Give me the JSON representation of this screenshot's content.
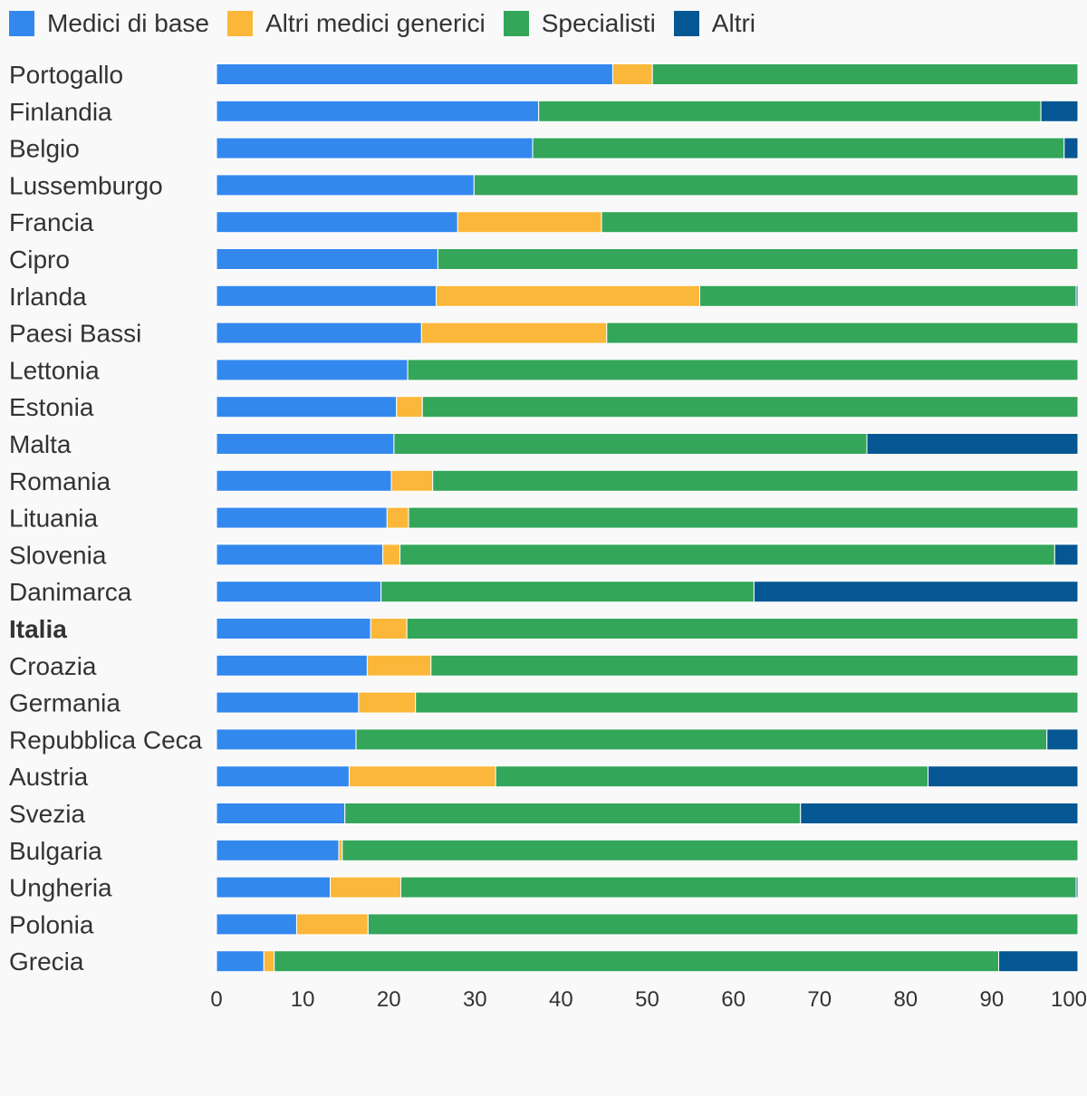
{
  "chart_data": {
    "type": "bar",
    "orientation": "horizontal",
    "stacked": true,
    "legend_position": "top-left",
    "xlim": [
      0,
      100
    ],
    "x_ticks": [
      0,
      10,
      20,
      30,
      40,
      50,
      60,
      70,
      80,
      90,
      100
    ],
    "highlight_category": "Italia",
    "categories": [
      "Portogallo",
      "Finlandia",
      "Belgio",
      "Lussemburgo",
      "Francia",
      "Cipro",
      "Irlanda",
      "Paesi Bassi",
      "Lettonia",
      "Estonia",
      "Malta",
      "Romania",
      "Lituania",
      "Slovenia",
      "Danimarca",
      "Italia",
      "Croazia",
      "Germania",
      "Repubblica Ceca",
      "Austria",
      "Svezia",
      "Bulgaria",
      "Ungheria",
      "Polonia",
      "Grecia"
    ],
    "series": [
      {
        "name": "Medici di base",
        "color": "#3388ee",
        "values": [
          46.0,
          37.4,
          36.7,
          29.9,
          28.0,
          25.7,
          25.5,
          23.8,
          22.2,
          20.9,
          20.6,
          20.3,
          19.8,
          19.3,
          19.1,
          17.9,
          17.5,
          16.5,
          16.2,
          15.4,
          14.9,
          14.2,
          13.2,
          9.3,
          5.5
        ]
      },
      {
        "name": "Altri medici generici",
        "color": "#fbb73a",
        "values": [
          4.6,
          0,
          0,
          0,
          16.7,
          0,
          30.6,
          21.5,
          0,
          3.0,
          0,
          4.8,
          2.5,
          2.0,
          0,
          4.2,
          7.4,
          6.6,
          0,
          17.0,
          0,
          0.4,
          8.2,
          8.3,
          1.2
        ]
      },
      {
        "name": "Specialisti",
        "color": "#33a65a",
        "values": [
          49.4,
          58.3,
          61.7,
          70.1,
          55.3,
          74.3,
          43.7,
          54.7,
          77.8,
          76.1,
          54.9,
          74.9,
          77.7,
          76.0,
          43.3,
          77.9,
          75.1,
          76.9,
          80.2,
          50.2,
          52.9,
          85.4,
          78.4,
          82.4,
          84.1
        ]
      },
      {
        "name": "Altri",
        "color": "#045792",
        "values": [
          0,
          4.3,
          1.6,
          0,
          0,
          0,
          0.2,
          0,
          0,
          0,
          24.5,
          0,
          0,
          2.7,
          37.6,
          0,
          0,
          0,
          3.6,
          17.4,
          32.2,
          0,
          0.2,
          0,
          9.2
        ]
      }
    ]
  }
}
